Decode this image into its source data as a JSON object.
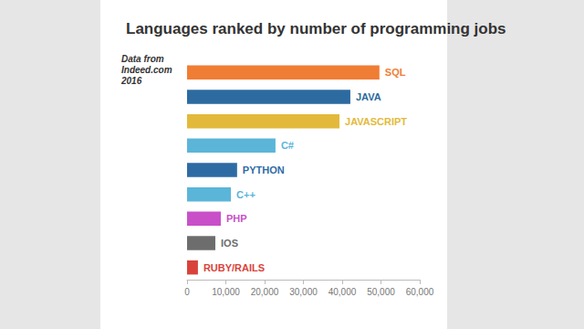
{
  "chart_data": {
    "type": "bar",
    "orientation": "horizontal",
    "title": "Languages ranked by number of programming jobs",
    "annotation": "Data from\nIndeed.com\n2016",
    "categories": [
      "SQL",
      "JAVA",
      "JAVASCRIPT",
      "C#",
      "PYTHON",
      "C++",
      "PHP",
      "IOS",
      "RUBY/RAILS"
    ],
    "values": [
      49600,
      42100,
      39300,
      22800,
      12900,
      11300,
      8700,
      7300,
      2800
    ],
    "colors": [
      "#f07d34",
      "#2c6aa0",
      "#e3b93b",
      "#5bb5d9",
      "#2e6ba4",
      "#5bb5d9",
      "#c84fc8",
      "#6d6d6d",
      "#d9423a"
    ],
    "xlim": [
      0,
      60000
    ],
    "xticks": [
      0,
      {
        "value": 10000,
        "label": "10,000"
      },
      {
        "value": 20000,
        "label": "20,000"
      },
      {
        "value": 30000,
        "label": "30,000"
      },
      {
        "value": 40000,
        "label": "40,000"
      },
      {
        "value": 50000,
        "label": "50,000"
      },
      {
        "value": 60000,
        "label": "60,000"
      }
    ],
    "grid": false,
    "tick_labels": "x"
  }
}
